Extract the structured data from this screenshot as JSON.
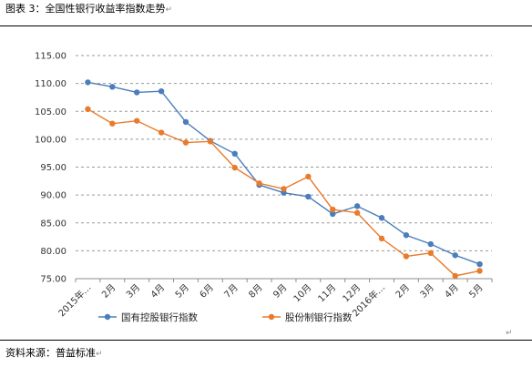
{
  "figure": {
    "caption": "图表 3：全国性银行收益率指数走势",
    "caption_mark": "↵",
    "source": "资料来源：普益标准",
    "source_mark": "↵",
    "end_mark": "↵"
  },
  "chart_data": {
    "type": "line",
    "title": "",
    "xlabel": "",
    "ylabel": "",
    "categories": [
      "2015年…",
      "2月",
      "3月",
      "4月",
      "5月",
      "6月",
      "7月",
      "8月",
      "9月",
      "10月",
      "11月",
      "12月",
      "2016年…",
      "2月",
      "3月",
      "4月",
      "5月"
    ],
    "ylim": [
      75,
      115
    ],
    "yticks": [
      "75.00",
      "80.00",
      "85.00",
      "90.00",
      "95.00",
      "100.00",
      "105.00",
      "110.00",
      "115.00"
    ],
    "grid": true,
    "legend_position": "bottom",
    "series": [
      {
        "name": "国有控股银行指数",
        "color": "#4a7ebb",
        "values": [
          110.2,
          109.4,
          108.4,
          108.6,
          103.1,
          99.7,
          97.4,
          91.8,
          90.4,
          89.7,
          86.6,
          88.0,
          85.9,
          82.8,
          81.2,
          79.2,
          77.6
        ]
      },
      {
        "name": "股份制银行指数",
        "color": "#e87b2c",
        "values": [
          105.4,
          102.8,
          103.3,
          101.2,
          99.4,
          99.6,
          94.9,
          92.1,
          91.1,
          93.3,
          87.4,
          86.8,
          82.2,
          79.0,
          79.6,
          75.5,
          76.4
        ]
      }
    ]
  }
}
